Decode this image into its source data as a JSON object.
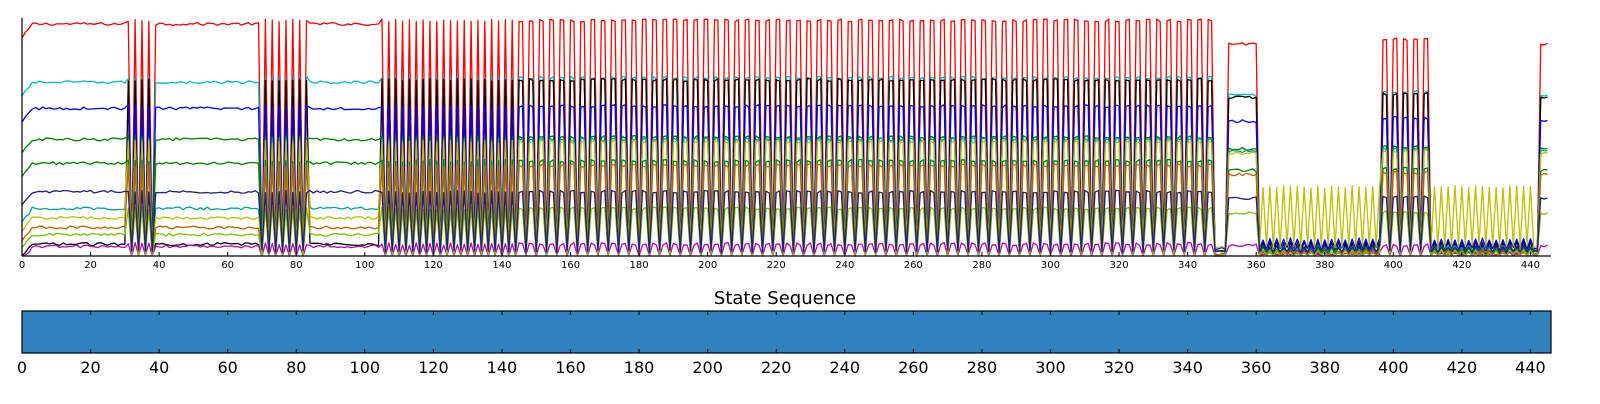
{
  "chart_data": [
    {
      "type": "line",
      "title": "",
      "xlabel": "",
      "ylabel": "",
      "xlim": [
        0,
        446
      ],
      "ylim": [
        0,
        1
      ],
      "x_ticks": [
        0,
        20,
        40,
        60,
        80,
        100,
        120,
        140,
        160,
        180,
        200,
        220,
        240,
        260,
        280,
        300,
        320,
        340,
        360,
        380,
        400,
        420,
        440
      ],
      "y_ticks": [],
      "grid": false,
      "legend": "none",
      "segments": {
        "seg_a": [
          0,
          31
        ],
        "burst_a": [
          31,
          39
        ],
        "seg_b": [
          39,
          70
        ],
        "burst_b": [
          70,
          84
        ],
        "seg_c": [
          84,
          105
        ],
        "burst_c": [
          105,
          145
        ],
        "burst_d": [
          145,
          349
        ],
        "drop": [
          349,
          352
        ],
        "hump": [
          352,
          361
        ],
        "quiet_a": [
          361,
          397
        ],
        "burst_e": [
          397,
          411
        ],
        "quiet_b": [
          411,
          442
        ],
        "spike_end": [
          443,
          446
        ]
      },
      "series": [
        {
          "color": "#ff0000",
          "base": 0.975,
          "hi": 0.99,
          "lo": 0.01,
          "quiet": 0.01
        },
        {
          "color": "#00bfbf",
          "base": 0.73,
          "hi": 0.75,
          "lo": 0.02,
          "quiet": 0.03
        },
        {
          "color": "#000000",
          "base": 0.05,
          "hi": 0.74,
          "lo": 0.0,
          "quiet": 0.06
        },
        {
          "color": "#0000ff",
          "base": 0.62,
          "hi": 0.63,
          "lo": 0.03,
          "quiet": 0.07
        },
        {
          "color": "#007f00",
          "base": 0.49,
          "hi": 0.5,
          "lo": 0.0,
          "quiet": 0.04
        },
        {
          "color": "#00a68a",
          "base": 0.2,
          "hi": 0.49,
          "lo": 0.02,
          "quiet": 0.04
        },
        {
          "color": "#bfbf00",
          "base": 0.16,
          "hi": 0.48,
          "lo": 0.04,
          "quiet": 0.29
        },
        {
          "color": "#008000",
          "base": 0.39,
          "hi": 0.4,
          "lo": 0.02,
          "quiet": 0.03
        },
        {
          "color": "#bf5f00",
          "base": 0.12,
          "hi": 0.38,
          "lo": 0.01,
          "quiet": 0.02
        },
        {
          "color": "#bf00bf",
          "base": 0.04,
          "hi": 0.05,
          "lo": 0.0,
          "quiet": 0.02
        },
        {
          "color": "#7fbf00",
          "base": 0.09,
          "hi": 0.2,
          "lo": 0.0,
          "quiet": 0.02
        },
        {
          "color": "#1f1f7f",
          "base": 0.27,
          "hi": 0.27,
          "lo": 0.02,
          "quiet": 0.04
        }
      ]
    },
    {
      "type": "heatmap",
      "title": "State Sequence",
      "xlim": [
        0,
        446
      ],
      "x_ticks": [
        0,
        20,
        40,
        60,
        80,
        100,
        120,
        140,
        160,
        180,
        200,
        220,
        240,
        260,
        280,
        300,
        320,
        340,
        360,
        380,
        400,
        420,
        440
      ],
      "states": [
        {
          "start": 0,
          "end": 446,
          "color": "#3182bd"
        }
      ]
    }
  ]
}
